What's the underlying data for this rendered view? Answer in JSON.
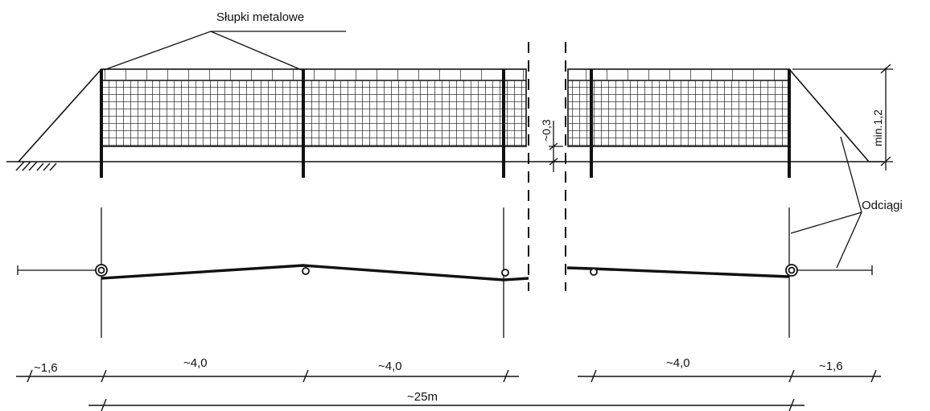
{
  "labels": {
    "posts_callout": "Słupki metalowe",
    "guys_callout": "Odciągi",
    "net_gap": "~0,3",
    "height": "min.1,2"
  },
  "dimensions": {
    "end_span": "~1,6",
    "bay_span": "~4,0",
    "total_length": "~25m"
  },
  "colors": {
    "ink": "#111111",
    "background": "#ffffff"
  }
}
